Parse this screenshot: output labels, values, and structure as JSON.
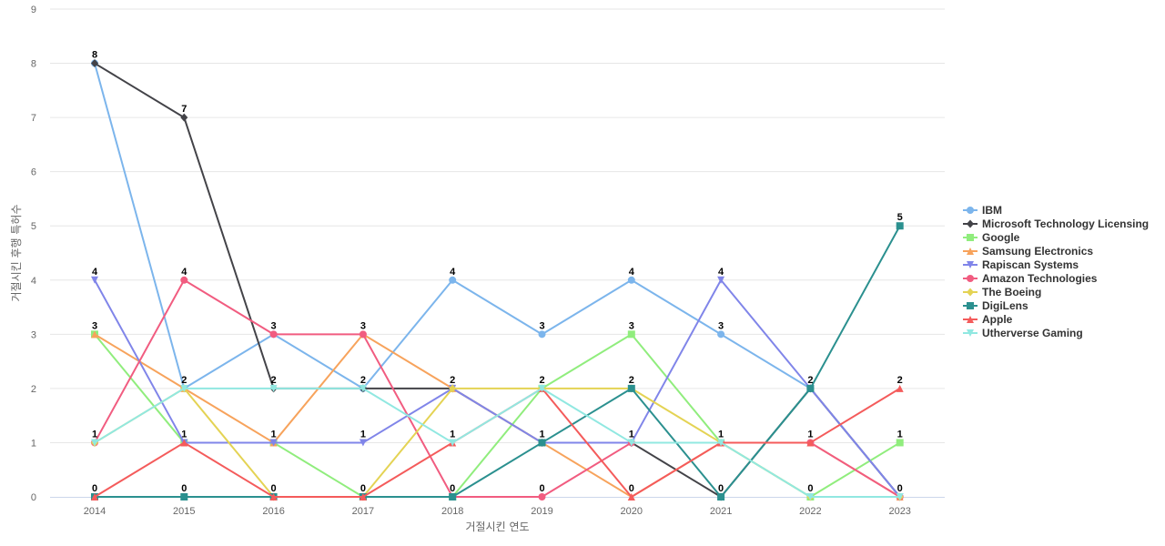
{
  "chart_data": {
    "type": "line",
    "title": "",
    "xlabel": "거절시킨 연도",
    "ylabel": "거절시킨 후행 특허수",
    "x": [
      "2014",
      "2015",
      "2016",
      "2017",
      "2018",
      "2019",
      "2020",
      "2021",
      "2022",
      "2023"
    ],
    "ylim": [
      0,
      9
    ],
    "yticks": [
      0,
      1,
      2,
      3,
      4,
      5,
      6,
      7,
      8,
      9
    ],
    "grid": true,
    "legend_position": "right",
    "series": [
      {
        "name": "IBM",
        "color": "#7cb5ec",
        "marker": "circle",
        "values": [
          8,
          2,
          3,
          2,
          4,
          3,
          4,
          3,
          2,
          0
        ]
      },
      {
        "name": "Microsoft Technology Licensing",
        "color": "#434348",
        "marker": "diamond",
        "values": [
          8,
          7,
          2,
          2,
          2,
          1,
          1,
          0,
          2,
          0
        ]
      },
      {
        "name": "Google",
        "color": "#90ed7d",
        "marker": "square",
        "values": [
          3,
          1,
          1,
          0,
          0,
          2,
          3,
          1,
          0,
          1
        ]
      },
      {
        "name": "Samsung Electronics",
        "color": "#f7a35c",
        "marker": "triangle",
        "values": [
          3,
          2,
          1,
          3,
          2,
          1,
          0,
          1,
          1,
          0
        ]
      },
      {
        "name": "Rapiscan Systems",
        "color": "#8085e9",
        "marker": "triangle-down",
        "values": [
          4,
          1,
          1,
          1,
          2,
          1,
          1,
          4,
          2,
          0
        ]
      },
      {
        "name": "Amazon Technologies",
        "color": "#f15c80",
        "marker": "circle",
        "values": [
          1,
          4,
          3,
          3,
          0,
          0,
          1,
          1,
          1,
          0
        ]
      },
      {
        "name": "The Boeing",
        "color": "#e4d354",
        "marker": "diamond",
        "values": [
          1,
          2,
          0,
          0,
          2,
          2,
          2,
          1,
          0,
          0
        ]
      },
      {
        "name": "DigiLens",
        "color": "#2b908f",
        "marker": "square",
        "values": [
          0,
          0,
          0,
          0,
          0,
          1,
          2,
          0,
          2,
          5
        ]
      },
      {
        "name": "Apple",
        "color": "#f45b5b",
        "marker": "triangle",
        "values": [
          0,
          1,
          0,
          0,
          1,
          2,
          0,
          1,
          1,
          2
        ]
      },
      {
        "name": "Utherverse Gaming",
        "color": "#91e8e1",
        "marker": "triangle-down",
        "values": [
          1,
          2,
          2,
          2,
          1,
          2,
          1,
          1,
          0,
          0
        ]
      }
    ],
    "data_labels": [
      {
        "x": "2014",
        "y": 8,
        "text": "8"
      },
      {
        "x": "2014",
        "y": 4,
        "text": "4"
      },
      {
        "x": "2014",
        "y": 3,
        "text": "3"
      },
      {
        "x": "2014",
        "y": 1,
        "text": "1"
      },
      {
        "x": "2014",
        "y": 0,
        "text": "0"
      },
      {
        "x": "2015",
        "y": 7,
        "text": "7"
      },
      {
        "x": "2015",
        "y": 4,
        "text": "4"
      },
      {
        "x": "2015",
        "y": 2,
        "text": "2"
      },
      {
        "x": "2015",
        "y": 1,
        "text": "1"
      },
      {
        "x": "2015",
        "y": 0,
        "text": "0"
      },
      {
        "x": "2016",
        "y": 3,
        "text": "3"
      },
      {
        "x": "2016",
        "y": 2,
        "text": "2"
      },
      {
        "x": "2016",
        "y": 1,
        "text": "1"
      },
      {
        "x": "2016",
        "y": 0,
        "text": "0"
      },
      {
        "x": "2017",
        "y": 3,
        "text": "3"
      },
      {
        "x": "2017",
        "y": 2,
        "text": "2"
      },
      {
        "x": "2017",
        "y": 1,
        "text": "1"
      },
      {
        "x": "2017",
        "y": 0,
        "text": "0"
      },
      {
        "x": "2018",
        "y": 4,
        "text": "4"
      },
      {
        "x": "2018",
        "y": 2,
        "text": "2"
      },
      {
        "x": "2018",
        "y": 1,
        "text": "1"
      },
      {
        "x": "2018",
        "y": 0,
        "text": "0"
      },
      {
        "x": "2019",
        "y": 3,
        "text": "3"
      },
      {
        "x": "2019",
        "y": 2,
        "text": "2"
      },
      {
        "x": "2019",
        "y": 1,
        "text": "1"
      },
      {
        "x": "2019",
        "y": 0,
        "text": "0"
      },
      {
        "x": "2020",
        "y": 4,
        "text": "4"
      },
      {
        "x": "2020",
        "y": 3,
        "text": "3"
      },
      {
        "x": "2020",
        "y": 2,
        "text": "2"
      },
      {
        "x": "2020",
        "y": 1,
        "text": "1"
      },
      {
        "x": "2020",
        "y": 0,
        "text": "0"
      },
      {
        "x": "2021",
        "y": 4,
        "text": "4"
      },
      {
        "x": "2021",
        "y": 3,
        "text": "3"
      },
      {
        "x": "2021",
        "y": 1,
        "text": "1"
      },
      {
        "x": "2021",
        "y": 0,
        "text": "0"
      },
      {
        "x": "2022",
        "y": 2,
        "text": "2"
      },
      {
        "x": "2022",
        "y": 1,
        "text": "1"
      },
      {
        "x": "2022",
        "y": 0,
        "text": "0"
      },
      {
        "x": "2023",
        "y": 5,
        "text": "5"
      },
      {
        "x": "2023",
        "y": 2,
        "text": "2"
      },
      {
        "x": "2023",
        "y": 1,
        "text": "1"
      },
      {
        "x": "2023",
        "y": 0,
        "text": "0"
      }
    ]
  }
}
